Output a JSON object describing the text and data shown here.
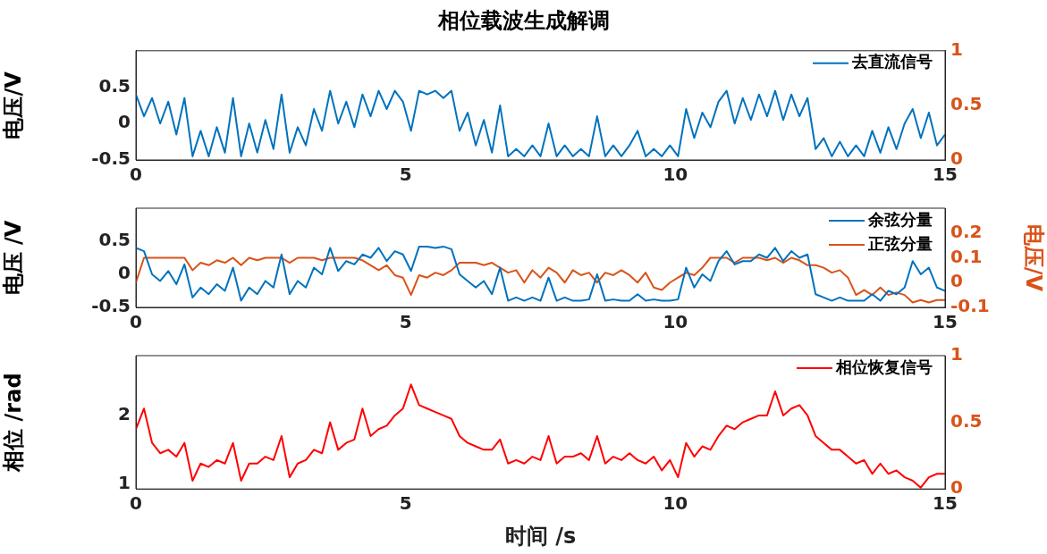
{
  "chart_data": [
    {
      "type": "line",
      "title": "相位载波生成解调",
      "ylabel": "电压/V",
      "legend": "top right",
      "grid": false,
      "x": [
        0,
        0.15,
        0.3,
        0.45,
        0.6,
        0.75,
        0.9,
        1.05,
        1.2,
        1.35,
        1.5,
        1.65,
        1.8,
        1.95,
        2.1,
        2.25,
        2.4,
        2.55,
        2.7,
        2.85,
        3,
        3.15,
        3.3,
        3.45,
        3.6,
        3.75,
        3.9,
        4.05,
        4.2,
        4.35,
        4.5,
        4.65,
        4.8,
        4.95,
        5.1,
        5.25,
        5.4,
        5.55,
        5.7,
        5.85,
        6,
        6.15,
        6.3,
        6.45,
        6.6,
        6.75,
        6.9,
        7.05,
        7.2,
        7.35,
        7.5,
        7.65,
        7.8,
        7.95,
        8.1,
        8.25,
        8.4,
        8.55,
        8.7,
        8.85,
        9,
        9.15,
        9.3,
        9.45,
        9.6,
        9.75,
        9.9,
        10.05,
        10.2,
        10.35,
        10.5,
        10.65,
        10.8,
        10.95,
        11.1,
        11.25,
        11.4,
        11.55,
        11.7,
        11.85,
        12,
        12.15,
        12.3,
        12.45,
        12.6,
        12.75,
        12.9,
        13.05,
        13.2,
        13.35,
        13.5,
        13.65,
        13.8,
        13.95,
        14.1,
        14.25,
        14.4,
        14.55,
        14.7,
        14.85,
        15
      ],
      "xlim": [
        0,
        15
      ],
      "xticks": [
        0,
        5,
        10,
        15
      ],
      "ylim": [
        -0.5,
        1
      ],
      "yticks": [
        -0.5,
        0,
        0.5
      ],
      "y2lim": [
        0,
        1
      ],
      "y2ticks": [
        0,
        0.5,
        1
      ],
      "series": [
        {
          "name": "去直流信号",
          "color": "#0072bd",
          "values": [
            0.4,
            0.1,
            0.35,
            0.0,
            0.3,
            -0.15,
            0.35,
            -0.45,
            -0.1,
            -0.45,
            -0.05,
            -0.4,
            0.35,
            -0.45,
            0.0,
            -0.4,
            0.05,
            -0.35,
            0.4,
            -0.4,
            -0.05,
            -0.3,
            0.2,
            -0.1,
            0.45,
            0.0,
            0.3,
            -0.05,
            0.4,
            0.1,
            0.45,
            0.2,
            0.45,
            0.3,
            -0.1,
            0.45,
            0.4,
            0.45,
            0.35,
            0.45,
            -0.1,
            0.15,
            -0.3,
            0.05,
            -0.4,
            0.25,
            -0.45,
            -0.35,
            -0.45,
            -0.3,
            -0.45,
            0.0,
            -0.45,
            -0.3,
            -0.45,
            -0.35,
            -0.45,
            0.1,
            -0.45,
            -0.3,
            -0.45,
            -0.3,
            -0.1,
            -0.45,
            -0.35,
            -0.45,
            -0.3,
            -0.45,
            0.2,
            -0.2,
            0.15,
            -0.05,
            0.3,
            0.45,
            0.0,
            0.35,
            0.05,
            0.4,
            0.1,
            0.45,
            0.05,
            0.4,
            0.1,
            0.35,
            -0.35,
            -0.2,
            -0.45,
            -0.25,
            -0.45,
            -0.3,
            -0.45,
            -0.1,
            -0.4,
            -0.05,
            -0.35,
            0.0,
            0.2,
            -0.2,
            0.15,
            -0.3,
            -0.15
          ]
        }
      ]
    },
    {
      "type": "line",
      "ylabel": "电压 /V",
      "y2label": "电压/V",
      "legend": "top right",
      "grid": false,
      "x": [
        0,
        0.15,
        0.3,
        0.45,
        0.6,
        0.75,
        0.9,
        1.05,
        1.2,
        1.35,
        1.5,
        1.65,
        1.8,
        1.95,
        2.1,
        2.25,
        2.4,
        2.55,
        2.7,
        2.85,
        3,
        3.15,
        3.3,
        3.45,
        3.6,
        3.75,
        3.9,
        4.05,
        4.2,
        4.35,
        4.5,
        4.65,
        4.8,
        4.95,
        5.1,
        5.25,
        5.4,
        5.55,
        5.7,
        5.85,
        6,
        6.15,
        6.3,
        6.45,
        6.6,
        6.75,
        6.9,
        7.05,
        7.2,
        7.35,
        7.5,
        7.65,
        7.8,
        7.95,
        8.1,
        8.25,
        8.4,
        8.55,
        8.7,
        8.85,
        9,
        9.15,
        9.3,
        9.45,
        9.6,
        9.75,
        9.9,
        10.05,
        10.2,
        10.35,
        10.5,
        10.65,
        10.8,
        10.95,
        11.1,
        11.25,
        11.4,
        11.55,
        11.7,
        11.85,
        12,
        12.15,
        12.3,
        12.45,
        12.6,
        12.75,
        12.9,
        13.05,
        13.2,
        13.35,
        13.5,
        13.65,
        13.8,
        13.95,
        14.1,
        14.25,
        14.4,
        14.55,
        14.7,
        14.85,
        15
      ],
      "xlim": [
        0,
        15
      ],
      "xticks": [
        0,
        5,
        10,
        15
      ],
      "ylim": [
        -0.5,
        1
      ],
      "yticks": [
        -0.5,
        0,
        0.5
      ],
      "y2lim": [
        -0.1,
        0.3
      ],
      "y2ticks": [
        -0.1,
        0,
        0.1,
        0.2
      ],
      "series": [
        {
          "name": "余弦分量",
          "color": "#0072bd",
          "values": [
            0.4,
            0.35,
            0.0,
            -0.1,
            0.05,
            -0.15,
            0.15,
            -0.35,
            -0.2,
            -0.3,
            -0.15,
            -0.25,
            0.1,
            -0.4,
            -0.2,
            -0.3,
            -0.1,
            -0.2,
            0.3,
            -0.3,
            -0.1,
            -0.2,
            0.1,
            0.0,
            0.4,
            0.05,
            0.2,
            0.15,
            0.3,
            0.25,
            0.4,
            0.2,
            0.35,
            0.3,
            0.05,
            0.42,
            0.42,
            0.4,
            0.42,
            0.38,
            0.0,
            -0.1,
            -0.2,
            -0.1,
            -0.3,
            0.1,
            -0.4,
            -0.35,
            -0.4,
            -0.35,
            -0.4,
            -0.05,
            -0.4,
            -0.35,
            -0.4,
            -0.4,
            -0.38,
            0.0,
            -0.4,
            -0.38,
            -0.4,
            -0.4,
            -0.3,
            -0.4,
            -0.38,
            -0.4,
            -0.4,
            -0.38,
            0.1,
            -0.2,
            0.0,
            -0.1,
            0.2,
            0.35,
            0.15,
            0.2,
            0.2,
            0.3,
            0.25,
            0.4,
            0.2,
            0.35,
            0.25,
            0.3,
            -0.3,
            -0.35,
            -0.4,
            -0.35,
            -0.4,
            -0.4,
            -0.4,
            -0.3,
            -0.4,
            -0.25,
            -0.3,
            -0.2,
            0.2,
            0.0,
            0.1,
            -0.2,
            -0.25
          ]
        },
        {
          "name": "正弦分量",
          "color": "#d95319",
          "axis": "y2",
          "values": [
            0.0,
            0.1,
            0.1,
            0.1,
            0.1,
            0.1,
            0.1,
            0.05,
            0.08,
            0.07,
            0.09,
            0.08,
            0.1,
            0.07,
            0.1,
            0.09,
            0.1,
            0.1,
            0.1,
            0.08,
            0.1,
            0.1,
            0.1,
            0.09,
            0.1,
            0.1,
            0.1,
            0.1,
            0.09,
            0.07,
            0.05,
            0.07,
            0.03,
            0.02,
            -0.05,
            0.03,
            0.02,
            0.04,
            0.03,
            0.05,
            0.08,
            0.08,
            0.08,
            0.07,
            0.08,
            0.06,
            0.04,
            0.05,
            0.0,
            0.05,
            0.02,
            0.06,
            0.04,
            0.0,
            0.05,
            0.03,
            0.04,
            0.0,
            0.04,
            0.03,
            0.05,
            0.03,
            0.0,
            0.04,
            -0.02,
            -0.03,
            0.0,
            0.02,
            0.04,
            0.03,
            0.06,
            0.1,
            0.1,
            0.1,
            0.08,
            0.1,
            0.1,
            0.1,
            0.09,
            0.1,
            0.08,
            0.1,
            0.09,
            0.07,
            0.07,
            0.06,
            0.04,
            0.05,
            0.02,
            -0.05,
            -0.03,
            -0.05,
            -0.02,
            -0.05,
            -0.04,
            -0.05,
            -0.08,
            -0.07,
            -0.08,
            -0.07,
            -0.07
          ]
        }
      ]
    },
    {
      "type": "line",
      "ylabel": "相位 /rad",
      "xlabel": "时间 /s",
      "legend": "top right",
      "grid": false,
      "x": [
        0,
        0.15,
        0.3,
        0.45,
        0.6,
        0.75,
        0.9,
        1.05,
        1.2,
        1.35,
        1.5,
        1.65,
        1.8,
        1.95,
        2.1,
        2.25,
        2.4,
        2.55,
        2.7,
        2.85,
        3,
        3.15,
        3.3,
        3.45,
        3.6,
        3.75,
        3.9,
        4.05,
        4.2,
        4.35,
        4.5,
        4.65,
        4.8,
        4.95,
        5.1,
        5.25,
        5.4,
        5.55,
        5.7,
        5.85,
        6,
        6.15,
        6.3,
        6.45,
        6.6,
        6.75,
        6.9,
        7.05,
        7.2,
        7.35,
        7.5,
        7.65,
        7.8,
        7.95,
        8.1,
        8.25,
        8.4,
        8.55,
        8.7,
        8.85,
        9,
        9.15,
        9.3,
        9.45,
        9.6,
        9.75,
        9.9,
        10.05,
        10.2,
        10.35,
        10.5,
        10.65,
        10.8,
        10.95,
        11.1,
        11.25,
        11.4,
        11.55,
        11.7,
        11.85,
        12,
        12.15,
        12.3,
        12.45,
        12.6,
        12.75,
        12.9,
        13.05,
        13.2,
        13.35,
        13.5,
        13.65,
        13.8,
        13.95,
        14.1,
        14.25,
        14.4,
        14.55,
        14.7,
        14.85,
        15
      ],
      "xlim": [
        0,
        15
      ],
      "xticks": [
        0,
        5,
        10,
        15
      ],
      "ylim": [
        0.93,
        2.87
      ],
      "yticks": [
        1,
        2
      ],
      "y2lim": [
        0,
        1
      ],
      "y2ticks": [
        0,
        0.5,
        1
      ],
      "series": [
        {
          "name": "相位恢复信号",
          "color": "#ff0000",
          "values": [
            1.8,
            2.1,
            1.6,
            1.45,
            1.5,
            1.4,
            1.6,
            1.05,
            1.3,
            1.25,
            1.35,
            1.3,
            1.6,
            1.05,
            1.3,
            1.3,
            1.4,
            1.35,
            1.7,
            1.1,
            1.3,
            1.35,
            1.5,
            1.45,
            1.9,
            1.5,
            1.6,
            1.65,
            2.1,
            1.7,
            1.8,
            1.85,
            2.0,
            2.1,
            2.45,
            2.15,
            2.1,
            2.05,
            2.0,
            1.95,
            1.7,
            1.6,
            1.55,
            1.5,
            1.5,
            1.65,
            1.3,
            1.35,
            1.3,
            1.4,
            1.35,
            1.7,
            1.3,
            1.4,
            1.4,
            1.45,
            1.35,
            1.7,
            1.3,
            1.4,
            1.35,
            1.45,
            1.35,
            1.3,
            1.4,
            1.2,
            1.35,
            1.1,
            1.6,
            1.4,
            1.55,
            1.5,
            1.7,
            1.85,
            1.8,
            1.9,
            1.95,
            2.0,
            2.0,
            2.35,
            2.0,
            2.1,
            2.15,
            2.0,
            1.7,
            1.6,
            1.5,
            1.5,
            1.4,
            1.3,
            1.35,
            1.15,
            1.3,
            1.15,
            1.2,
            1.1,
            1.05,
            0.95,
            1.1,
            1.15,
            1.15
          ]
        }
      ]
    }
  ]
}
